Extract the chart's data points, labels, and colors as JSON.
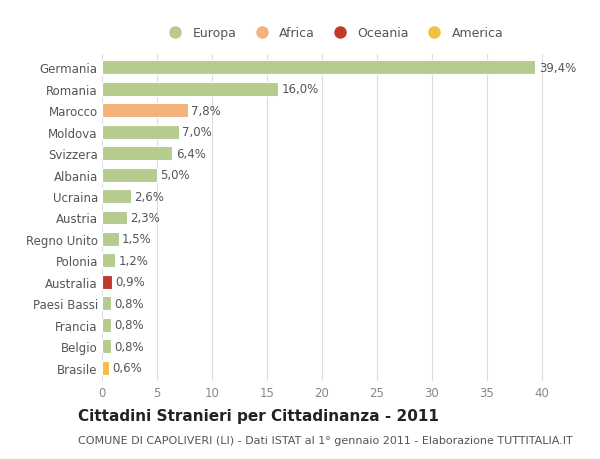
{
  "categories": [
    "Germania",
    "Romania",
    "Marocco",
    "Moldova",
    "Svizzera",
    "Albania",
    "Ucraina",
    "Austria",
    "Regno Unito",
    "Polonia",
    "Australia",
    "Paesi Bassi",
    "Francia",
    "Belgio",
    "Brasile"
  ],
  "values": [
    39.4,
    16.0,
    7.8,
    7.0,
    6.4,
    5.0,
    2.6,
    2.3,
    1.5,
    1.2,
    0.9,
    0.8,
    0.8,
    0.8,
    0.6
  ],
  "labels": [
    "39,4%",
    "16,0%",
    "7,8%",
    "7,0%",
    "6,4%",
    "5,0%",
    "2,6%",
    "2,3%",
    "1,5%",
    "1,2%",
    "0,9%",
    "0,8%",
    "0,8%",
    "0,8%",
    "0,6%"
  ],
  "bar_colors": [
    "#b5cc8e",
    "#b5cc8e",
    "#f2b27a",
    "#b5cc8e",
    "#b5cc8e",
    "#b5cc8e",
    "#b5cc8e",
    "#b5cc8e",
    "#b5cc8e",
    "#b5cc8e",
    "#c0392b",
    "#b5cc8e",
    "#b5cc8e",
    "#b5cc8e",
    "#f0c040"
  ],
  "legend_labels": [
    "Europa",
    "Africa",
    "Oceania",
    "America"
  ],
  "legend_colors": [
    "#b5cc8e",
    "#f2b27a",
    "#c0392b",
    "#f0c040"
  ],
  "xlim": [
    0,
    42
  ],
  "xticks": [
    0,
    5,
    10,
    15,
    20,
    25,
    30,
    35,
    40
  ],
  "title": "Cittadini Stranieri per Cittadinanza - 2011",
  "subtitle": "COMUNE DI CAPOLIVERI (LI) - Dati ISTAT al 1° gennaio 2011 - Elaborazione TUTTITALIA.IT",
  "bg_color": "#ffffff",
  "plot_bg_color": "#ffffff",
  "grid_color": "#dddddd",
  "label_fontsize": 8.5,
  "tick_fontsize": 8.5,
  "title_fontsize": 11,
  "subtitle_fontsize": 8
}
